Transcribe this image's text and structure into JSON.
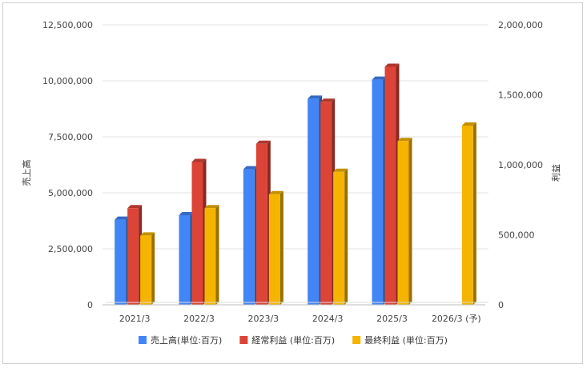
{
  "chart_data": {
    "type": "bar",
    "categories": [
      "2021/3",
      "2022/3",
      "2023/3",
      "2024/3",
      "2025/3",
      "2026/3 (予)"
    ],
    "left_axis": {
      "label": "売上高",
      "range": [
        0,
        12500000
      ],
      "ticks": [
        "0",
        "2,500,000",
        "5,000,000",
        "7,500,000",
        "10,000,000",
        "12,500,000"
      ]
    },
    "right_axis": {
      "label": "利益",
      "range": [
        0,
        2000000
      ],
      "ticks": [
        "0",
        "500,000",
        "1,000,000",
        "1,500,000",
        "2,000,000"
      ]
    },
    "series": [
      {
        "name": "売上高(単位:百万)",
        "axis": "left",
        "color": "#4285F4",
        "values": [
          3800000,
          4000000,
          6050000,
          9200000,
          10050000,
          null
        ]
      },
      {
        "name": "経常利益 (単位:百万)",
        "axis": "right",
        "color": "#DB4437",
        "values": [
          690000,
          1020000,
          1150000,
          1450000,
          1700000,
          null
        ]
      },
      {
        "name": "最終利益 (単位:百万)",
        "axis": "right",
        "color": "#F4B400",
        "values": [
          495000,
          690000,
          790000,
          950000,
          1170000,
          1280000
        ]
      }
    ],
    "grid": true,
    "legend_position": "bottom"
  }
}
